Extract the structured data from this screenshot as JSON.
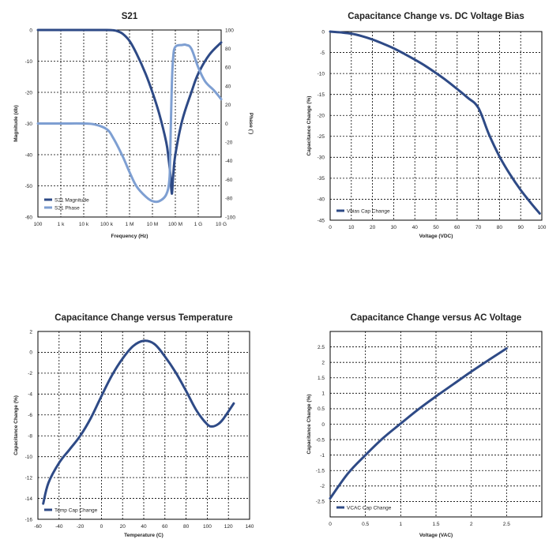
{
  "chart_data": [
    {
      "type": "line",
      "title": "S21",
      "xlabel": "Frequency (Hz)",
      "ylabel": "Magnitude (db)",
      "y2label": "Phase (˚)",
      "xscale": "log",
      "xlim": [
        100,
        10000000000
      ],
      "ylim": [
        -60,
        0
      ],
      "y2lim": [
        -100,
        100
      ],
      "x_ticks": [
        100,
        1000,
        10000,
        100000,
        1000000,
        10000000,
        100000000,
        1000000000,
        10000000000
      ],
      "x_tick_labels": [
        "100",
        "1 k",
        "10 k",
        "100 k",
        "1 M",
        "10 M",
        "100 M",
        "1 G",
        "10 G"
      ],
      "y_ticks": [
        0,
        -10,
        -20,
        -30,
        -40,
        -50,
        -60
      ],
      "y_tick_labels": [
        "0",
        "-10",
        "-20",
        "-30",
        "-40",
        "-50",
        "-60"
      ],
      "y2_ticks": [
        100,
        80,
        60,
        40,
        20,
        0,
        -20,
        -40,
        -60,
        -80,
        -100
      ],
      "y2_tick_labels": [
        "100",
        "80",
        "60",
        "40",
        "20",
        "0",
        "-20",
        "-40",
        "-60",
        "-80",
        "-100"
      ],
      "grid": true,
      "legend_position": "bottom-left",
      "series": [
        {
          "name": "S21 Magnitude",
          "axis": "left",
          "color": "#2e4a86",
          "x": [
            100,
            1000,
            10000,
            100000,
            200000,
            300000,
            500000,
            1000000,
            2000000,
            5000000,
            10000000,
            20000000,
            40000000,
            50000000,
            60000000,
            70000000,
            80000000,
            100000000,
            200000000,
            500000000,
            1000000000,
            3000000000,
            10000000000
          ],
          "y": [
            0,
            0,
            0,
            0,
            -0.1,
            -0.4,
            -1.2,
            -3.5,
            -7.5,
            -14,
            -20,
            -27,
            -36,
            -41,
            -46,
            -52.5,
            -47,
            -40,
            -29,
            -20,
            -14,
            -8,
            -4
          ]
        },
        {
          "name": "S21 Phase",
          "axis": "right",
          "color": "#7e9fd2",
          "x": [
            100,
            1000,
            10000,
            30000,
            100000,
            200000,
            500000,
            1000000,
            2000000,
            5000000,
            10000000,
            20000000,
            40000000,
            55000000,
            60000000,
            70000000,
            80000000,
            100000000,
            200000000,
            300000000,
            500000000,
            1000000000,
            2000000000,
            5000000000,
            10000000000
          ],
          "y": [
            0,
            0,
            0,
            -1,
            -6,
            -16,
            -35,
            -52,
            -67,
            -78,
            -83,
            -83,
            -76,
            -60,
            -30,
            40,
            70,
            82,
            84,
            84,
            80,
            60,
            45,
            35,
            26
          ]
        }
      ]
    },
    {
      "type": "line",
      "title": "Capacitance Change vs. DC Voltage Bias",
      "xlabel": "Voltage (VDC)",
      "ylabel": "Capacitance Change (%)",
      "xlim": [
        0,
        100
      ],
      "ylim": [
        -45,
        0
      ],
      "x_ticks": [
        0,
        10,
        20,
        30,
        40,
        50,
        60,
        70,
        80,
        90,
        100
      ],
      "y_ticks": [
        0,
        -5,
        -10,
        -15,
        -20,
        -25,
        -30,
        -35,
        -40,
        -45
      ],
      "grid": true,
      "legend_position": "bottom-left",
      "series": [
        {
          "name": "Vbias Cap Change",
          "color": "#2e4a86",
          "x": [
            0,
            5,
            10,
            15,
            20,
            25,
            30,
            35,
            40,
            45,
            50,
            55,
            60,
            65,
            70,
            75,
            80,
            85,
            90,
            95,
            99
          ],
          "y": [
            0,
            -0.2,
            -0.5,
            -1.1,
            -1.9,
            -2.9,
            -4.0,
            -5.3,
            -6.7,
            -8.2,
            -9.9,
            -11.7,
            -13.7,
            -15.8,
            -18.2,
            -24.5,
            -29.8,
            -34.1,
            -37.8,
            -41,
            -43.4
          ]
        }
      ]
    },
    {
      "type": "line",
      "title": "Capacitance Change versus Temperature",
      "xlabel": "Temperature (C)",
      "ylabel": "Capacitance Change (%)",
      "xlim": [
        -60,
        140
      ],
      "ylim": [
        -16,
        2
      ],
      "x_ticks": [
        -60,
        -40,
        -20,
        0,
        20,
        40,
        60,
        80,
        100,
        120,
        140
      ],
      "y_ticks": [
        2,
        0,
        -2,
        -4,
        -6,
        -8,
        -10,
        -12,
        -14,
        -16
      ],
      "grid": true,
      "legend_position": "bottom-left",
      "series": [
        {
          "name": "Temp Cap Change",
          "color": "#2e4a86",
          "x": [
            -55,
            -50,
            -40,
            -30,
            -20,
            -10,
            0,
            10,
            20,
            30,
            40,
            50,
            60,
            70,
            80,
            90,
            100,
            105,
            110,
            115,
            125
          ],
          "y": [
            -14.5,
            -12.5,
            -10.6,
            -9.3,
            -8.0,
            -6.3,
            -4.2,
            -2.2,
            -0.6,
            0.6,
            1.1,
            0.8,
            -0.4,
            -1.9,
            -3.7,
            -5.6,
            -6.9,
            -7.1,
            -6.9,
            -6.4,
            -4.9
          ]
        }
      ]
    },
    {
      "type": "line",
      "title": "Capacitance Change versus AC Voltage",
      "xlabel": "Voltage (VAC)",
      "ylabel": "Capacitance Change (%)",
      "xlim": [
        0,
        3
      ],
      "ylim": [
        -3,
        3
      ],
      "x_ticks": [
        0,
        0.5,
        1,
        1.5,
        2,
        2.5,
        3
      ],
      "x_tick_labels": [
        "0",
        "0.5",
        "1",
        "1.5",
        "2",
        "2.5",
        ""
      ],
      "y_ticks": [
        2.5,
        2,
        1.5,
        1,
        0.5,
        0,
        -0.5,
        -1,
        -1.5,
        -2,
        -2.5
      ],
      "grid": true,
      "legend_position": "bottom-left",
      "series": [
        {
          "name": "VCAC Cap Change",
          "color": "#2e4a86",
          "x": [
            0,
            0.25,
            0.5,
            0.75,
            1.0,
            1.25,
            1.5,
            1.75,
            2.0,
            2.25,
            2.5
          ],
          "y": [
            -2.4,
            -1.6,
            -1.0,
            -0.45,
            0.02,
            0.48,
            0.9,
            1.3,
            1.7,
            2.08,
            2.45
          ]
        }
      ]
    }
  ]
}
